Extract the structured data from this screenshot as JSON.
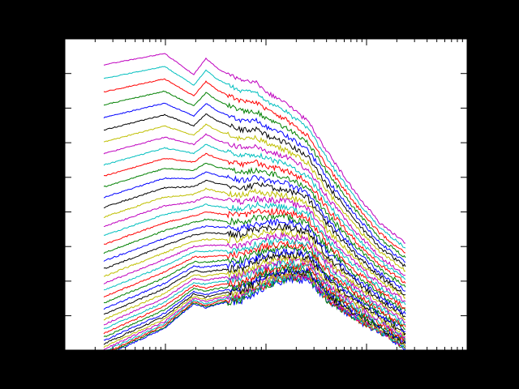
{
  "chart_data": {
    "type": "line",
    "title": "",
    "xlabel": "",
    "ylabel": "",
    "x_scale": "log",
    "y_scale": "log",
    "tick_labels_visible": false,
    "grid": false,
    "legend": "none",
    "series_count": 40,
    "series_colors": [
      "#0000ff",
      "#008000",
      "#ff0000",
      "#00bfbf",
      "#bf00bf",
      "#bfbf00",
      "#000000"
    ],
    "background": "#ffffff",
    "figure_background": "#000000"
  }
}
